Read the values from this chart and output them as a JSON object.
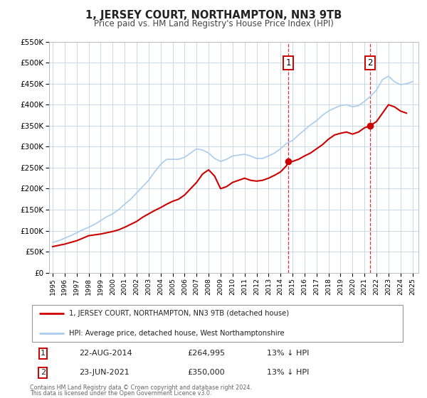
{
  "title": "1, JERSEY COURT, NORTHAMPTON, NN3 9TB",
  "subtitle": "Price paid vs. HM Land Registry's House Price Index (HPI)",
  "background_color": "#ffffff",
  "plot_bg_color": "#ffffff",
  "grid_color": "#c8d8e8",
  "red_line_color": "#cc0000",
  "blue_line_color": "#aaccee",
  "marker_color": "#cc0000",
  "vline_color": "#cc2222",
  "ylim": [
    0,
    550000
  ],
  "yticks": [
    0,
    50000,
    100000,
    150000,
    200000,
    250000,
    300000,
    350000,
    400000,
    450000,
    500000,
    550000
  ],
  "ytick_labels": [
    "£0",
    "£50K",
    "£100K",
    "£150K",
    "£200K",
    "£250K",
    "£300K",
    "£350K",
    "£400K",
    "£450K",
    "£500K",
    "£550K"
  ],
  "xlim_start": 1994.7,
  "xlim_end": 2025.5,
  "xticks": [
    1995,
    1996,
    1997,
    1998,
    1999,
    2000,
    2001,
    2002,
    2003,
    2004,
    2005,
    2006,
    2007,
    2008,
    2009,
    2010,
    2011,
    2012,
    2013,
    2014,
    2015,
    2016,
    2017,
    2018,
    2019,
    2020,
    2021,
    2022,
    2023,
    2024,
    2025
  ],
  "sale1_x": 2014.64,
  "sale1_y": 264995,
  "sale1_label": "1",
  "sale1_date": "22-AUG-2014",
  "sale1_price": "£264,995",
  "sale1_hpi": "13% ↓ HPI",
  "sale2_x": 2021.48,
  "sale2_y": 350000,
  "sale2_label": "2",
  "sale2_date": "23-JUN-2021",
  "sale2_price": "£350,000",
  "sale2_hpi": "13% ↓ HPI",
  "legend_label_red": "1, JERSEY COURT, NORTHAMPTON, NN3 9TB (detached house)",
  "legend_label_blue": "HPI: Average price, detached house, West Northamptonshire",
  "footer1": "Contains HM Land Registry data © Crown copyright and database right 2024.",
  "footer2": "This data is licensed under the Open Government Licence v3.0.",
  "red_x": [
    1995.0,
    1995.5,
    1996.0,
    1996.5,
    1997.0,
    1997.5,
    1998.0,
    1998.5,
    1999.0,
    1999.5,
    2000.0,
    2000.5,
    2001.0,
    2001.5,
    2002.0,
    2002.5,
    2003.0,
    2003.5,
    2004.0,
    2004.5,
    2005.0,
    2005.5,
    2006.0,
    2006.5,
    2007.0,
    2007.5,
    2008.0,
    2008.5,
    2009.0,
    2009.5,
    2010.0,
    2010.5,
    2011.0,
    2011.5,
    2012.0,
    2012.5,
    2013.0,
    2013.5,
    2014.0,
    2014.5,
    2014.64,
    2015.0,
    2015.5,
    2016.0,
    2016.5,
    2017.0,
    2017.5,
    2018.0,
    2018.5,
    2019.0,
    2019.5,
    2020.0,
    2020.5,
    2021.0,
    2021.48,
    2022.0,
    2022.5,
    2023.0,
    2023.5,
    2024.0,
    2024.5
  ],
  "red_y": [
    62000,
    65000,
    68000,
    72000,
    76000,
    82000,
    88000,
    90000,
    92000,
    95000,
    98000,
    102000,
    108000,
    115000,
    122000,
    132000,
    140000,
    148000,
    155000,
    163000,
    170000,
    175000,
    185000,
    200000,
    215000,
    235000,
    245000,
    230000,
    200000,
    205000,
    215000,
    220000,
    225000,
    220000,
    218000,
    220000,
    225000,
    232000,
    240000,
    255000,
    264995,
    265000,
    270000,
    278000,
    285000,
    295000,
    305000,
    318000,
    328000,
    332000,
    335000,
    330000,
    335000,
    345000,
    350000,
    360000,
    380000,
    400000,
    395000,
    385000,
    380000
  ],
  "blue_x": [
    1995.0,
    1995.5,
    1996.0,
    1996.5,
    1997.0,
    1997.5,
    1998.0,
    1998.5,
    1999.0,
    1999.5,
    2000.0,
    2000.5,
    2001.0,
    2001.5,
    2002.0,
    2002.5,
    2003.0,
    2003.5,
    2004.0,
    2004.5,
    2005.0,
    2005.5,
    2006.0,
    2006.5,
    2007.0,
    2007.5,
    2008.0,
    2008.5,
    2009.0,
    2009.5,
    2010.0,
    2010.5,
    2011.0,
    2011.5,
    2012.0,
    2012.5,
    2013.0,
    2013.5,
    2014.0,
    2014.5,
    2015.0,
    2015.5,
    2016.0,
    2016.5,
    2017.0,
    2017.5,
    2018.0,
    2018.5,
    2019.0,
    2019.5,
    2020.0,
    2020.5,
    2021.0,
    2021.5,
    2022.0,
    2022.5,
    2023.0,
    2023.5,
    2024.0,
    2024.5,
    2025.0
  ],
  "blue_y": [
    72000,
    76000,
    82000,
    88000,
    95000,
    102000,
    108000,
    115000,
    124000,
    133000,
    140000,
    150000,
    163000,
    175000,
    190000,
    205000,
    220000,
    240000,
    258000,
    270000,
    270000,
    270000,
    275000,
    285000,
    295000,
    292000,
    285000,
    272000,
    265000,
    270000,
    278000,
    280000,
    282000,
    278000,
    272000,
    272000,
    278000,
    285000,
    295000,
    308000,
    315000,
    328000,
    340000,
    352000,
    362000,
    375000,
    385000,
    392000,
    398000,
    400000,
    395000,
    398000,
    408000,
    420000,
    435000,
    460000,
    468000,
    455000,
    448000,
    450000,
    455000
  ]
}
